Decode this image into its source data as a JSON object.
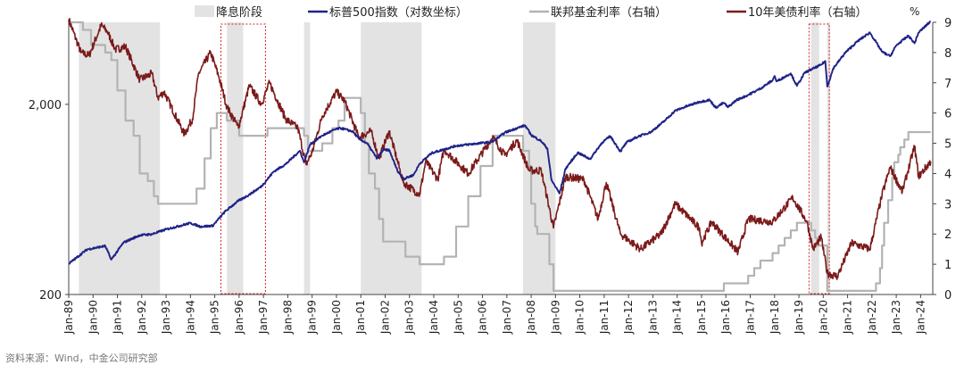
{
  "chart_data": {
    "type": "line",
    "title": "",
    "x_start": "1989-01",
    "x_end": "2024-06",
    "x_ticks": [
      "Jan-89",
      "Jan-90",
      "Jan-91",
      "Jan-92",
      "Jan-93",
      "Jan-94",
      "Jan-95",
      "Jan-96",
      "Jan-97",
      "Jan-98",
      "Jan-99",
      "Jan-00",
      "Jan-01",
      "Jan-02",
      "Jan-03",
      "Jan-04",
      "Jan-05",
      "Jan-06",
      "Jan-07",
      "Jan-08",
      "Jan-09",
      "Jan-10",
      "Jan-11",
      "Jan-12",
      "Jan-13",
      "Jan-14",
      "Jan-15",
      "Jan-16",
      "Jan-17",
      "Jan-18",
      "Jan-19",
      "Jan-20",
      "Jan-21",
      "Jan-22",
      "Jan-23",
      "Jan-24"
    ],
    "left_axis": {
      "scale": "log",
      "ylim": [
        200,
        5400
      ],
      "ticks": [
        {
          "value": 200,
          "label": "200"
        },
        {
          "value": 2000,
          "label": "2,000"
        }
      ]
    },
    "right_axis": {
      "unit": "%",
      "ylim": [
        0,
        9
      ],
      "ticks": [
        "0",
        "1",
        "2",
        "3",
        "4",
        "5",
        "6",
        "7",
        "8",
        "9"
      ]
    },
    "legend": [
      {
        "key": "shade",
        "label": "降息阶段",
        "color": "#e3e3e3"
      },
      {
        "key": "spx",
        "label": "标普500指数（对数坐标）",
        "color": "#1f2288"
      },
      {
        "key": "ffr",
        "label": "联邦基金利率（右轴）",
        "color": "#b3b3b3"
      },
      {
        "key": "ust10",
        "label": "10年美债利率（右轴）",
        "color": "#7b1a1a"
      }
    ],
    "legend_position": "top",
    "shaded_periods": [
      [
        "1989-06",
        "1992-09"
      ],
      [
        "1995-07",
        "1996-02"
      ],
      [
        "1998-09",
        "1998-11"
      ],
      [
        "2001-01",
        "2003-06"
      ],
      [
        "2007-09",
        "2008-12"
      ],
      [
        "2019-07",
        "2019-10"
      ],
      [
        "2020-03",
        "2020-03"
      ]
    ],
    "highlight_boxes": [
      [
        "1995-04",
        "1997-01"
      ],
      [
        "2019-06",
        "2020-03"
      ]
    ],
    "highlight_color": "#d62020",
    "series": [
      {
        "key": "spx",
        "name": "标普500指数（对数坐标）",
        "axis": "left",
        "color": "#1f2288",
        "points": [
          [
            "1989-01",
            290
          ],
          [
            "1989-10",
            345
          ],
          [
            "1990-07",
            360
          ],
          [
            "1990-10",
            305
          ],
          [
            "1991-04",
            375
          ],
          [
            "1991-12",
            410
          ],
          [
            "1992-06",
            415
          ],
          [
            "1993-01",
            440
          ],
          [
            "1994-01",
            475
          ],
          [
            "1994-06",
            455
          ],
          [
            "1994-12",
            460
          ],
          [
            "1995-06",
            545
          ],
          [
            "1995-12",
            615
          ],
          [
            "1996-06",
            670
          ],
          [
            "1996-12",
            740
          ],
          [
            "1997-06",
            885
          ],
          [
            "1997-12",
            970
          ],
          [
            "1998-07",
            1140
          ],
          [
            "1998-09",
            990
          ],
          [
            "1998-12",
            1230
          ],
          [
            "1999-06",
            1370
          ],
          [
            "1999-12",
            1470
          ],
          [
            "2000-03",
            1500
          ],
          [
            "2000-09",
            1440
          ],
          [
            "2000-12",
            1320
          ],
          [
            "2001-04",
            1250
          ],
          [
            "2001-09",
            1040
          ],
          [
            "2001-12",
            1150
          ],
          [
            "2002-03",
            1150
          ],
          [
            "2002-07",
            900
          ],
          [
            "2002-10",
            810
          ],
          [
            "2003-03",
            850
          ],
          [
            "2003-06",
            975
          ],
          [
            "2003-12",
            1110
          ],
          [
            "2004-12",
            1210
          ],
          [
            "2005-12",
            1250
          ],
          [
            "2006-06",
            1270
          ],
          [
            "2006-12",
            1420
          ],
          [
            "2007-06",
            1500
          ],
          [
            "2007-10",
            1550
          ],
          [
            "2008-01",
            1380
          ],
          [
            "2008-06",
            1280
          ],
          [
            "2008-09",
            1170
          ],
          [
            "2008-11",
            800
          ],
          [
            "2009-03",
            680
          ],
          [
            "2009-06",
            920
          ],
          [
            "2009-12",
            1115
          ],
          [
            "2010-06",
            1030
          ],
          [
            "2010-12",
            1260
          ],
          [
            "2011-04",
            1360
          ],
          [
            "2011-09",
            1130
          ],
          [
            "2011-12",
            1260
          ],
          [
            "2012-06",
            1360
          ],
          [
            "2012-12",
            1430
          ],
          [
            "2013-06",
            1610
          ],
          [
            "2013-12",
            1850
          ],
          [
            "2014-06",
            1960
          ],
          [
            "2014-12",
            2060
          ],
          [
            "2015-05",
            2110
          ],
          [
            "2015-08",
            1920
          ],
          [
            "2015-12",
            2040
          ],
          [
            "2016-02",
            1930
          ],
          [
            "2016-06",
            2100
          ],
          [
            "2016-12",
            2240
          ],
          [
            "2017-06",
            2420
          ],
          [
            "2017-12",
            2675
          ],
          [
            "2018-01",
            2820
          ],
          [
            "2018-02",
            2640
          ],
          [
            "2018-09",
            2910
          ],
          [
            "2018-12",
            2500
          ],
          [
            "2019-04",
            2940
          ],
          [
            "2019-12",
            3230
          ],
          [
            "2020-02",
            3380
          ],
          [
            "2020-03",
            2480
          ],
          [
            "2020-06",
            3100
          ],
          [
            "2020-12",
            3750
          ],
          [
            "2021-06",
            4300
          ],
          [
            "2021-12",
            4770
          ],
          [
            "2022-06",
            3780
          ],
          [
            "2022-10",
            3580
          ],
          [
            "2023-01",
            4080
          ],
          [
            "2023-07",
            4590
          ],
          [
            "2023-10",
            4190
          ],
          [
            "2023-12",
            4770
          ],
          [
            "2024-06",
            5470
          ]
        ]
      },
      {
        "key": "ffr",
        "name": "联邦基金利率（右轴）",
        "axis": "right",
        "color": "#b3b3b3",
        "points": [
          [
            "1989-01",
            9.0
          ],
          [
            "1989-05",
            9.0
          ],
          [
            "1989-08",
            8.75
          ],
          [
            "1989-12",
            8.25
          ],
          [
            "1990-07",
            8.0
          ],
          [
            "1990-10",
            7.75
          ],
          [
            "1991-01",
            6.75
          ],
          [
            "1991-05",
            5.75
          ],
          [
            "1991-09",
            5.25
          ],
          [
            "1991-12",
            4.0
          ],
          [
            "1992-04",
            3.75
          ],
          [
            "1992-07",
            3.25
          ],
          [
            "1992-09",
            3.0
          ],
          [
            "1994-02",
            3.0
          ],
          [
            "1994-04",
            3.5
          ],
          [
            "1994-08",
            4.5
          ],
          [
            "1994-11",
            5.5
          ],
          [
            "1995-02",
            6.0
          ],
          [
            "1995-07",
            5.75
          ],
          [
            "1996-01",
            5.25
          ],
          [
            "1997-03",
            5.5
          ],
          [
            "1998-09",
            5.25
          ],
          [
            "1998-11",
            4.75
          ],
          [
            "1999-06",
            5.0
          ],
          [
            "1999-11",
            5.5
          ],
          [
            "2000-02",
            5.75
          ],
          [
            "2000-05",
            6.5
          ],
          [
            "2000-12",
            6.5
          ],
          [
            "2001-01",
            6.0
          ],
          [
            "2001-03",
            5.0
          ],
          [
            "2001-05",
            4.0
          ],
          [
            "2001-08",
            3.5
          ],
          [
            "2001-10",
            2.5
          ],
          [
            "2001-12",
            1.75
          ],
          [
            "2002-11",
            1.25
          ],
          [
            "2003-06",
            1.0
          ],
          [
            "2004-05",
            1.0
          ],
          [
            "2004-06",
            1.25
          ],
          [
            "2004-12",
            2.25
          ],
          [
            "2005-06",
            3.25
          ],
          [
            "2005-12",
            4.25
          ],
          [
            "2006-06",
            5.25
          ],
          [
            "2007-08",
            5.25
          ],
          [
            "2007-09",
            4.75
          ],
          [
            "2007-12",
            4.25
          ],
          [
            "2008-01",
            3.0
          ],
          [
            "2008-03",
            2.25
          ],
          [
            "2008-04",
            2.0
          ],
          [
            "2008-10",
            1.0
          ],
          [
            "2008-12",
            0.12
          ],
          [
            "2015-11",
            0.12
          ],
          [
            "2015-12",
            0.37
          ],
          [
            "2016-12",
            0.62
          ],
          [
            "2017-03",
            0.87
          ],
          [
            "2017-06",
            1.12
          ],
          [
            "2017-12",
            1.37
          ],
          [
            "2018-03",
            1.62
          ],
          [
            "2018-06",
            1.87
          ],
          [
            "2018-09",
            2.12
          ],
          [
            "2018-12",
            2.37
          ],
          [
            "2019-07",
            2.12
          ],
          [
            "2019-09",
            1.87
          ],
          [
            "2019-10",
            1.62
          ],
          [
            "2020-03",
            0.12
          ],
          [
            "2022-02",
            0.12
          ],
          [
            "2022-03",
            0.37
          ],
          [
            "2022-05",
            0.87
          ],
          [
            "2022-06",
            1.62
          ],
          [
            "2022-07",
            2.37
          ],
          [
            "2022-09",
            3.12
          ],
          [
            "2022-11",
            3.87
          ],
          [
            "2022-12",
            4.37
          ],
          [
            "2023-02",
            4.62
          ],
          [
            "2023-03",
            4.87
          ],
          [
            "2023-05",
            5.12
          ],
          [
            "2023-07",
            5.37
          ],
          [
            "2024-06",
            5.37
          ]
        ]
      },
      {
        "key": "ust10",
        "name": "10年美债利率（右轴）",
        "axis": "right",
        "color": "#7b1a1a",
        "points": [
          [
            "1989-01",
            9.1
          ],
          [
            "1989-07",
            8.0
          ],
          [
            "1989-11",
            7.9
          ],
          [
            "1990-05",
            8.9
          ],
          [
            "1990-08",
            8.7
          ],
          [
            "1990-12",
            8.1
          ],
          [
            "1991-05",
            8.2
          ],
          [
            "1991-12",
            7.1
          ],
          [
            "1992-06",
            7.3
          ],
          [
            "1992-09",
            6.5
          ],
          [
            "1992-12",
            6.7
          ],
          [
            "1993-10",
            5.3
          ],
          [
            "1994-02",
            5.8
          ],
          [
            "1994-05",
            7.3
          ],
          [
            "1994-11",
            8.0
          ],
          [
            "1995-03",
            7.2
          ],
          [
            "1995-07",
            6.2
          ],
          [
            "1995-12",
            5.6
          ],
          [
            "1996-01",
            5.6
          ],
          [
            "1996-06",
            6.9
          ],
          [
            "1996-12",
            6.3
          ],
          [
            "1997-04",
            7.0
          ],
          [
            "1997-12",
            5.8
          ],
          [
            "1998-06",
            5.5
          ],
          [
            "1998-10",
            4.3
          ],
          [
            "1999-01",
            4.7
          ],
          [
            "1999-06",
            5.9
          ],
          [
            "2000-01",
            6.7
          ],
          [
            "2000-05",
            6.4
          ],
          [
            "2000-12",
            5.2
          ],
          [
            "2001-06",
            5.4
          ],
          [
            "2001-10",
            4.5
          ],
          [
            "2002-03",
            5.4
          ],
          [
            "2002-10",
            3.7
          ],
          [
            "2003-06",
            3.3
          ],
          [
            "2003-09",
            4.4
          ],
          [
            "2004-03",
            3.8
          ],
          [
            "2004-06",
            4.8
          ],
          [
            "2005-06",
            4.0
          ],
          [
            "2006-06",
            5.2
          ],
          [
            "2006-12",
            4.6
          ],
          [
            "2007-06",
            5.1
          ],
          [
            "2007-12",
            4.1
          ],
          [
            "2008-06",
            4.1
          ],
          [
            "2008-12",
            2.2
          ],
          [
            "2009-06",
            3.9
          ],
          [
            "2010-03",
            3.8
          ],
          [
            "2010-10",
            2.5
          ],
          [
            "2011-02",
            3.7
          ],
          [
            "2011-09",
            2.0
          ],
          [
            "2012-07",
            1.5
          ],
          [
            "2013-05",
            2.0
          ],
          [
            "2013-12",
            3.0
          ],
          [
            "2014-12",
            2.2
          ],
          [
            "2015-01",
            1.7
          ],
          [
            "2015-06",
            2.4
          ],
          [
            "2016-07",
            1.4
          ],
          [
            "2016-12",
            2.5
          ],
          [
            "2017-12",
            2.4
          ],
          [
            "2018-10",
            3.2
          ],
          [
            "2019-05",
            2.4
          ],
          [
            "2019-08",
            1.5
          ],
          [
            "2019-12",
            1.9
          ],
          [
            "2020-03",
            0.7
          ],
          [
            "2020-08",
            0.6
          ],
          [
            "2021-03",
            1.7
          ],
          [
            "2021-12",
            1.5
          ],
          [
            "2022-06",
            3.3
          ],
          [
            "2022-10",
            4.2
          ],
          [
            "2023-04",
            3.4
          ],
          [
            "2023-10",
            4.9
          ],
          [
            "2023-12",
            3.9
          ],
          [
            "2024-06",
            4.4
          ]
        ]
      }
    ]
  },
  "source_note": "资料来源：Wind，中金公司研究部"
}
